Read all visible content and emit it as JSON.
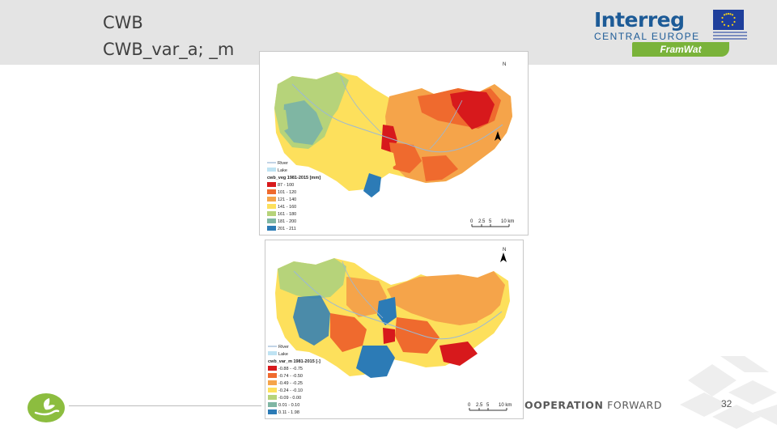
{
  "header": {
    "title_line1": "CWB",
    "title_line2": "CWB_var_a; _m"
  },
  "logo": {
    "brand": "Interreg",
    "program": "CENTRAL EUROPE",
    "project": "FramWat"
  },
  "maps": [
    {
      "north_label": "N",
      "legend": {
        "items": [
          "River",
          "Lake"
        ],
        "title": "cwb_veg 1981-2015 [mm]",
        "classes": [
          {
            "label": "87 - 100",
            "color": "#d7191c"
          },
          {
            "label": "101 - 120",
            "color": "#ef6a2e"
          },
          {
            "label": "121 - 140",
            "color": "#f5a44a"
          },
          {
            "label": "141 - 160",
            "color": "#fde05c"
          },
          {
            "label": "161 - 180",
            "color": "#b6d37a"
          },
          {
            "label": "181 - 200",
            "color": "#7fb6a3"
          },
          {
            "label": "201 - 211",
            "color": "#2c7bb6"
          }
        ]
      },
      "scale_labels": [
        "0",
        "2.5",
        "5",
        "10 km"
      ]
    },
    {
      "north_label": "N",
      "legend": {
        "items": [
          "River",
          "Lake"
        ],
        "title": "cwb_var_m 1981-2015 [-]",
        "classes": [
          {
            "label": "-0.88 - -0.75",
            "color": "#d7191c"
          },
          {
            "label": "-0.74 - -0.50",
            "color": "#ef6a2e"
          },
          {
            "label": "-0.49 - -0.25",
            "color": "#f5a44a"
          },
          {
            "label": "-0.24 - -0.10",
            "color": "#fde05c"
          },
          {
            "label": "-0.09 - 0.00",
            "color": "#b6d37a"
          },
          {
            "label": "0.01 - 0.10",
            "color": "#7fb6a3"
          },
          {
            "label": "0.11 - 1.98",
            "color": "#2c7bb6"
          }
        ]
      },
      "scale_labels": [
        "0",
        "2.5",
        "5",
        "10 km"
      ]
    }
  ],
  "footer": {
    "tagline_bold": "OOPERATION",
    "tagline_rest": "FORWARD",
    "slide_number": "32"
  },
  "colors": {
    "header_band": "#e4e4e4",
    "brand_blue": "#1d5b97",
    "brand_green": "#7ab33a"
  }
}
